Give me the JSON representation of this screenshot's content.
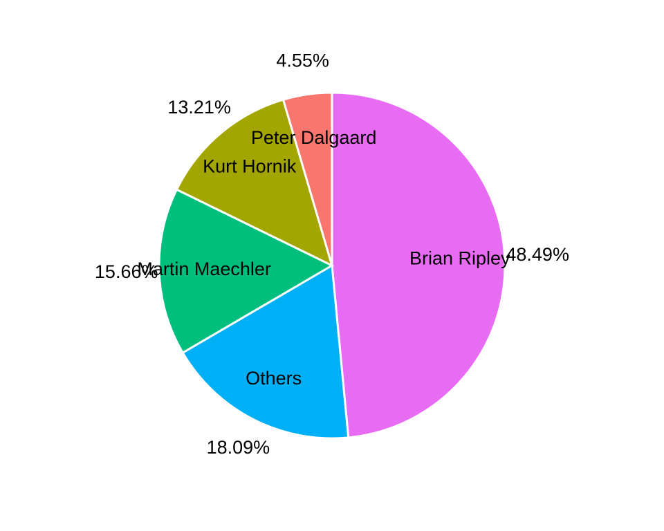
{
  "chart_data": {
    "type": "pie",
    "title": "",
    "start": "12 o'clock",
    "direction": "clockwise",
    "slices": [
      {
        "label": "Brian Ripley",
        "value": 48.49,
        "pct_label": "48.49%",
        "color": "#E76BF3"
      },
      {
        "label": "Others",
        "value": 18.09,
        "pct_label": "18.09%",
        "color": "#00B0F6"
      },
      {
        "label": "Martin Maechler",
        "value": 15.66,
        "pct_label": "15.66%",
        "color": "#00BF7D"
      },
      {
        "label": "Kurt Hornik",
        "value": 13.21,
        "pct_label": "13.21%",
        "color": "#A3A500"
      },
      {
        "label": "Peter Dalgaard",
        "value": 4.55,
        "pct_label": "4.55%",
        "color": "#F8766D"
      }
    ]
  }
}
